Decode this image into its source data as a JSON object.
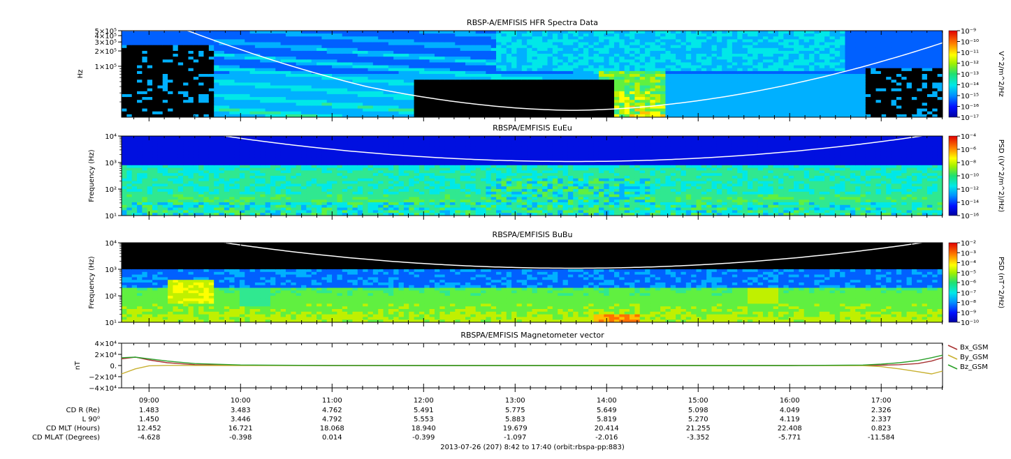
{
  "colors": {
    "background": "#000000",
    "spectra_scale": [
      "#0000a8",
      "#0010e0",
      "#0060ff",
      "#00b0ff",
      "#00e8e8",
      "#30e890",
      "#60f040",
      "#c0f000",
      "#ffff00",
      "#ffc000",
      "#ff7000",
      "#ff2000",
      "#e00000"
    ],
    "bx": "#a83232",
    "by": "#c8b030",
    "bz": "#2aa02a",
    "trace": "#ffffff"
  },
  "chart_data": [
    {
      "type": "heatmap",
      "title": "RBSP-A/EMFISIS  HFR Spectra Data",
      "ylabel": "Hz",
      "yscale": "log",
      "ylim": [
        10000,
        500000
      ],
      "ytick_labels": [
        "5×10⁵",
        "4×10⁵",
        "3×10⁵",
        "2×10⁵",
        "1×10⁵"
      ],
      "colorbar_label": "V^2/m^2/Hz",
      "colorbar_ticks": [
        "10⁻⁹",
        "10⁻¹⁰",
        "10⁻¹¹",
        "10⁻¹²",
        "10⁻¹³",
        "10⁻¹⁴",
        "10⁻¹⁵",
        "10⁻¹⁶",
        "10⁻¹⁷"
      ],
      "colorbar_range_exp": [
        -17,
        -9
      ]
    },
    {
      "type": "heatmap",
      "title": "RBSPA/EMFISIS  EuEu",
      "ylabel": "Frequency (Hz)",
      "yscale": "log",
      "ylim": [
        10,
        10000
      ],
      "ytick_labels": [
        "10⁴",
        "10³",
        "10²",
        "10¹"
      ],
      "colorbar_label": "PSD ((V^2/m^2)/Hz)",
      "colorbar_ticks": [
        "10⁻⁴",
        "10⁻⁶",
        "10⁻⁸",
        "10⁻¹⁰",
        "10⁻¹²",
        "10⁻¹⁴",
        "10⁻¹⁶"
      ],
      "colorbar_range_exp": [
        -16,
        -4
      ]
    },
    {
      "type": "heatmap",
      "title": "RBSPA/EMFISIS  BuBu",
      "ylabel": "Frequency (Hz)",
      "yscale": "log",
      "ylim": [
        10,
        10000
      ],
      "ytick_labels": [
        "10⁴",
        "10³",
        "10²",
        "10¹"
      ],
      "colorbar_label": "PSD (nT^2/Hz)",
      "colorbar_ticks": [
        "10⁻²",
        "10⁻³",
        "10⁻⁴",
        "10⁻⁵",
        "10⁻⁶",
        "10⁻⁷",
        "10⁻⁸",
        "10⁻⁹",
        "10⁻¹⁰"
      ],
      "colorbar_range_exp": [
        -10,
        -2
      ]
    },
    {
      "type": "line",
      "title": "RBSPA/EMFISIS  Magnetometer vector",
      "ylabel": "nT",
      "ylim": [
        -40000,
        40000
      ],
      "ytick_labels": [
        "4×10⁴",
        "2×10⁴",
        "0.",
        "−2×10⁴",
        "−4×10⁴"
      ],
      "ytick_values": [
        40000,
        20000,
        0,
        -20000,
        -40000
      ],
      "x": [
        8.7,
        8.85,
        9.0,
        9.2,
        9.5,
        10.0,
        11.0,
        12.0,
        13.0,
        14.0,
        15.0,
        16.0,
        16.8,
        17.0,
        17.2,
        17.4,
        17.55,
        17.67
      ],
      "series": [
        {
          "name": "Bx_GSM",
          "values": [
            12000,
            15000,
            10000,
            5000,
            1500,
            200,
            0,
            0,
            0,
            0,
            0,
            0,
            300,
            600,
            1500,
            3500,
            8000,
            14000
          ]
        },
        {
          "name": "By_GSM",
          "values": [
            -15000,
            -6000,
            -500,
            200,
            100,
            0,
            0,
            0,
            0,
            0,
            0,
            0,
            -300,
            -2000,
            -6000,
            -11000,
            -15000,
            -10000
          ]
        },
        {
          "name": "Bz_GSM",
          "values": [
            14000,
            15000,
            12000,
            8000,
            3500,
            1000,
            100,
            0,
            0,
            0,
            0,
            0,
            900,
            2500,
            5000,
            9000,
            14000,
            18500
          ]
        }
      ]
    }
  ],
  "orbit_table": {
    "time_labels": [
      "09:00",
      "10:00",
      "11:00",
      "12:00",
      "13:00",
      "14:00",
      "15:00",
      "16:00",
      "17:00"
    ],
    "time_values": [
      9,
      10,
      11,
      12,
      13,
      14,
      15,
      16,
      17
    ],
    "time_range": [
      8.7,
      17.67
    ],
    "rows": [
      {
        "label": "CD R (Re)",
        "values": [
          "1.483",
          "3.483",
          "4.762",
          "5.491",
          "5.775",
          "5.649",
          "5.098",
          "4.049",
          "2.326"
        ]
      },
      {
        "label": "L 90⁰",
        "values": [
          "1.450",
          "3.446",
          "4.792",
          "5.553",
          "5.883",
          "5.819",
          "5.270",
          "4.119",
          "2.337"
        ]
      },
      {
        "label": "CD MLT (Hours)",
        "values": [
          "12.452",
          "16.721",
          "18.068",
          "18.940",
          "19.679",
          "20.414",
          "21.255",
          "22.408",
          "0.823"
        ]
      },
      {
        "label": "CD MLAT (Degrees)",
        "values": [
          "-4.628",
          "-0.398",
          "0.014",
          "-0.399",
          "-1.097",
          "-2.016",
          "-3.352",
          "-5.771",
          "-11.584"
        ]
      }
    ],
    "footer": "2013-07-26 (207) 8:42 to 17:40 (orbit:rbspa-pp:883)"
  }
}
